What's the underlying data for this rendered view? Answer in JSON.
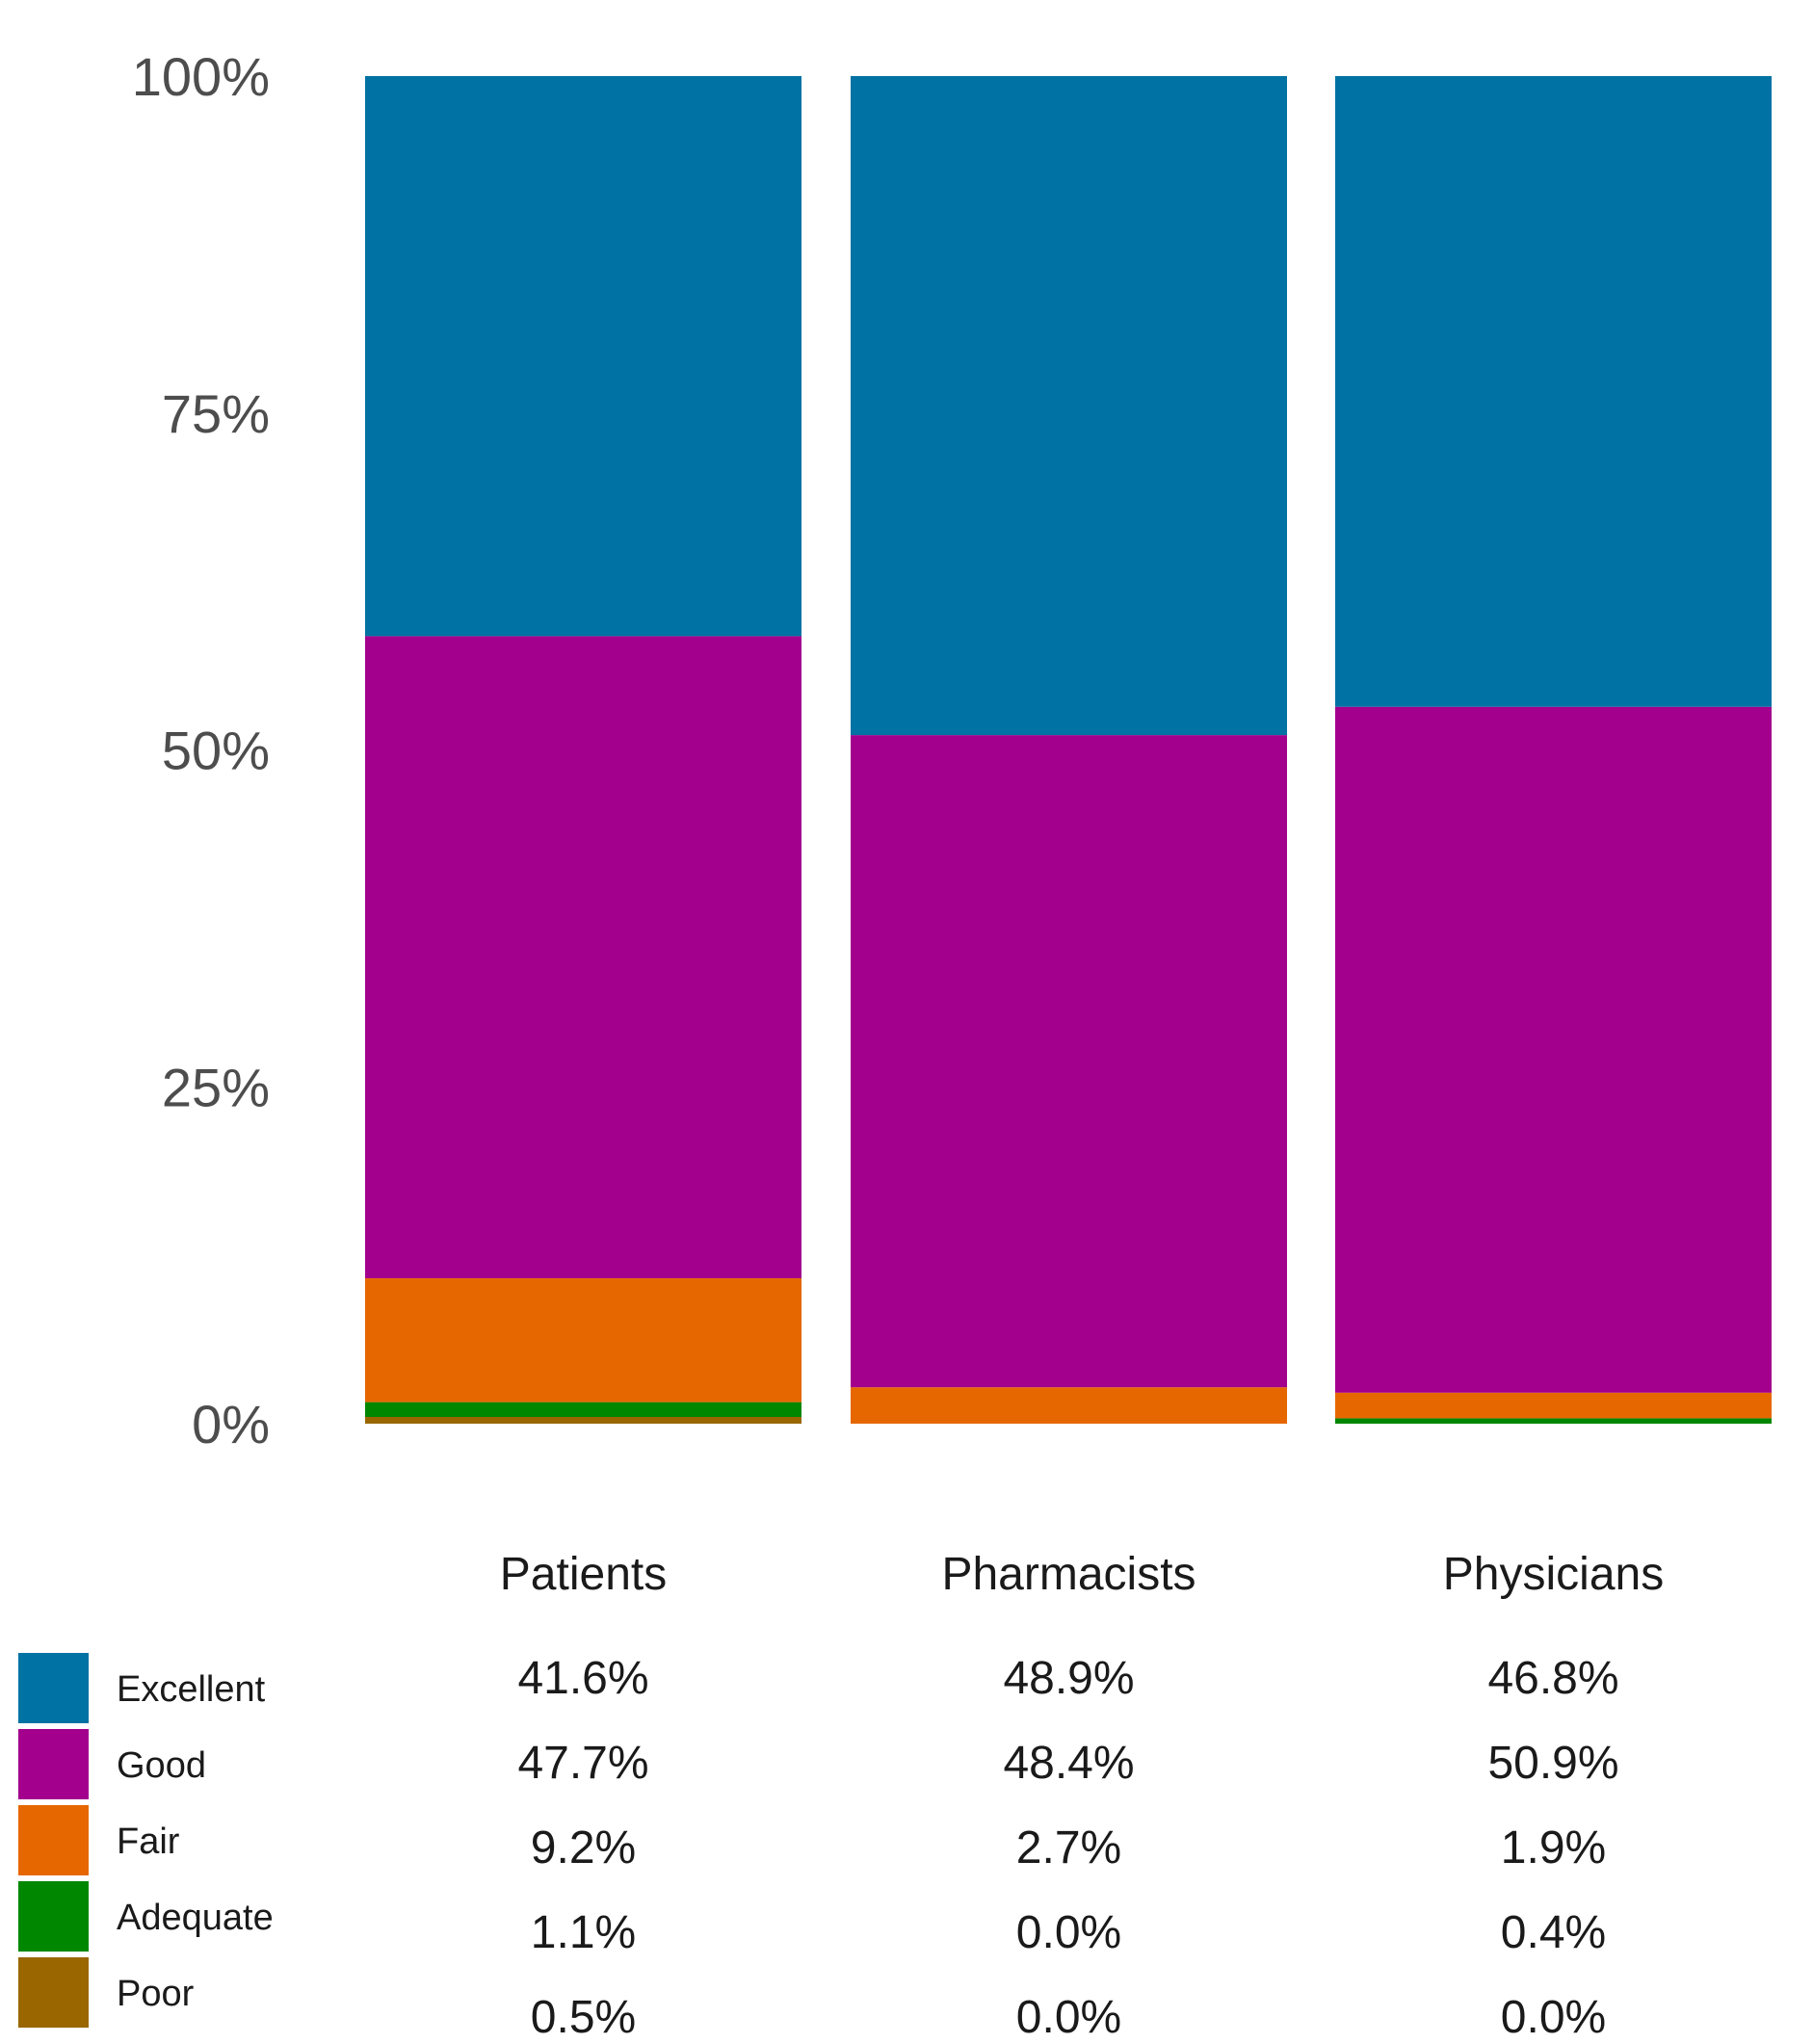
{
  "chart_data": {
    "type": "bar",
    "stacked": true,
    "title": "",
    "xlabel": "",
    "ylabel": "",
    "ylim": [
      0,
      100
    ],
    "y_ticks": [
      "0%",
      "25%",
      "50%",
      "75%",
      "100%"
    ],
    "categories": [
      "Patients",
      "Pharmacists",
      "Physicians"
    ],
    "series": [
      {
        "name": "Excellent",
        "color": "#0072A3",
        "values": [
          41.6,
          48.9,
          46.8
        ],
        "labels": [
          "41.6%",
          "48.9%",
          "46.8%"
        ]
      },
      {
        "name": "Good",
        "color": "#A2008D",
        "values": [
          47.7,
          48.4,
          50.9
        ],
        "labels": [
          "47.7%",
          "48.4%",
          "50.9%"
        ]
      },
      {
        "name": "Fair",
        "color": "#E66700",
        "values": [
          9.2,
          2.7,
          1.9
        ],
        "labels": [
          "9.2%",
          "2.7%",
          "1.9%"
        ]
      },
      {
        "name": "Adequate",
        "color": "#008700",
        "values": [
          1.1,
          0.0,
          0.4
        ],
        "labels": [
          "1.1%",
          "0.0%",
          "0.4%"
        ]
      },
      {
        "name": "Poor",
        "color": "#996600",
        "values": [
          0.5,
          0.0,
          0.0
        ],
        "labels": [
          "0.5%",
          "0.0%",
          "0.0%"
        ]
      }
    ],
    "legend": "bottom-left",
    "grid": false
  }
}
